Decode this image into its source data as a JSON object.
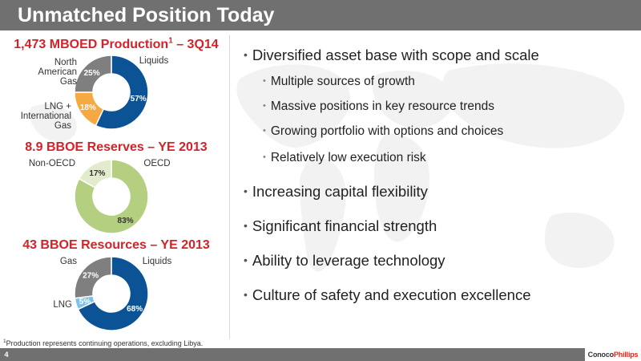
{
  "header": {
    "title": "Unmatched Position Today"
  },
  "charts": [
    {
      "title": "1,473 MBOED Production",
      "title_sup": "1",
      "title_suffix": " – 3Q14",
      "slices": [
        {
          "name": "Liquids",
          "value": 57,
          "label": "57%",
          "color": "#0b5394",
          "label_color": "#ffffff"
        },
        {
          "name": "LNG + International Gas",
          "value": 18,
          "label": "18%",
          "color": "#f4a942",
          "label_color": "#ffffff"
        },
        {
          "name": "North American Gas",
          "value": 25,
          "label": "25%",
          "color": "#7f7f7f",
          "label_color": "#ffffff"
        }
      ],
      "legend_lines": [
        [
          "Liquids"
        ],
        [
          "LNG +",
          "International",
          "Gas"
        ],
        [
          "North",
          "American",
          "Gas"
        ]
      ]
    },
    {
      "title": "8.9 BBOE Reserves – YE 2013",
      "title_sup": "",
      "title_suffix": "",
      "slices": [
        {
          "name": "OECD",
          "value": 83,
          "label": "83%",
          "color": "#b3cf7f",
          "label_color": "#333333"
        },
        {
          "name": "Non-OECD",
          "value": 17,
          "label": "17%",
          "color": "#e2ebcc",
          "label_color": "#333333"
        }
      ],
      "legend_lines": [
        [
          "OECD"
        ],
        [
          "Non-OECD"
        ]
      ]
    },
    {
      "title": "43 BBOE Resources – YE 2013",
      "title_sup": "",
      "title_suffix": "",
      "slices": [
        {
          "name": "Liquids",
          "value": 68,
          "label": "68%",
          "color": "#0b5394",
          "label_color": "#ffffff"
        },
        {
          "name": "LNG",
          "value": 5,
          "label": "5%",
          "color": "#7fc2e8",
          "label_color": "#ffffff"
        },
        {
          "name": "Gas",
          "value": 27,
          "label": "27%",
          "color": "#7f7f7f",
          "label_color": "#ffffff"
        }
      ],
      "legend_lines": [
        [
          "Liquids"
        ],
        [
          "LNG"
        ],
        [
          "Gas"
        ]
      ]
    }
  ],
  "chart_data": [
    {
      "type": "pie",
      "title": "1,473 MBOED Production1 – 3Q14",
      "categories": [
        "Liquids",
        "LNG + International Gas",
        "North American Gas"
      ],
      "values": [
        57,
        18,
        25
      ]
    },
    {
      "type": "pie",
      "title": "8.9 BBOE Reserves – YE 2013",
      "categories": [
        "OECD",
        "Non-OECD"
      ],
      "values": [
        83,
        17
      ]
    },
    {
      "type": "pie",
      "title": "43 BBOE Resources – YE 2013",
      "categories": [
        "Liquids",
        "LNG",
        "Gas"
      ],
      "values": [
        68,
        5,
        27
      ]
    }
  ],
  "bullets": [
    {
      "level": 1,
      "text": "Diversified asset base with scope and scale"
    },
    {
      "level": 2,
      "text": "Multiple sources of growth"
    },
    {
      "level": 2,
      "text": "Massive positions in key resource trends"
    },
    {
      "level": 2,
      "text": "Growing portfolio with options and choices"
    },
    {
      "level": 2,
      "text": "Relatively low execution risk"
    },
    {
      "level": 1,
      "text": "Increasing capital flexibility"
    },
    {
      "level": 1,
      "text": "Significant financial strength"
    },
    {
      "level": 1,
      "text": "Ability to leverage technology"
    },
    {
      "level": 1,
      "text": "Culture of safety and execution excellence"
    }
  ],
  "footnote": {
    "sup": "1",
    "text": "Production represents continuing operations, excluding Libya."
  },
  "footer": {
    "page_number": "4",
    "logo_part1": "Conoco",
    "logo_part2": "Phillips"
  }
}
